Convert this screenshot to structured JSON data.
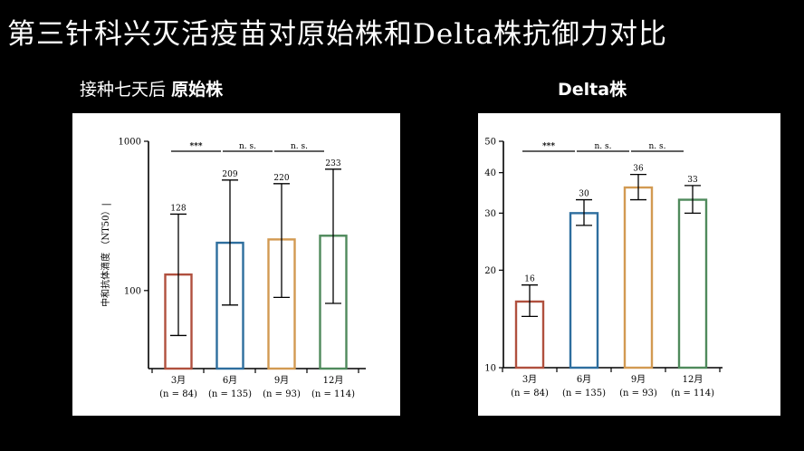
{
  "title": "第三针科兴灭活疫苗对原始株和Delta株抗御力对比",
  "colors": {
    "background": "#000000",
    "panel": "#ffffff",
    "bar_3m": "#b0503e",
    "bar_6m": "#2e6e9e",
    "bar_9m": "#d29a52",
    "bar_12m": "#4f8a5c"
  },
  "chart_data": [
    {
      "type": "bar",
      "panel_title_prefix": "接种七天后",
      "panel_title": "原始株",
      "ylabel": "中和抗体滴度 （NT50）|",
      "yscale": "log",
      "ylim": [
        30,
        1000
      ],
      "yticks": [
        100,
        1000
      ],
      "categories": [
        "3月",
        "6月",
        "9月",
        "12月"
      ],
      "sample_sizes": [
        "(n = 84)",
        "(n = 135)",
        "(n = 93)",
        "(n = 114)"
      ],
      "values": [
        128,
        209,
        220,
        233
      ],
      "value_labels": [
        "128",
        "209",
        "220",
        "233"
      ],
      "error_low": [
        50,
        80,
        90,
        82
      ],
      "error_high": [
        325,
        550,
        520,
        650
      ],
      "significance": [
        {
          "from": 0,
          "to": 1,
          "label": "***"
        },
        {
          "from": 1,
          "to": 2,
          "label": "n. s."
        },
        {
          "from": 2,
          "to": 3,
          "label": "n. s."
        }
      ]
    },
    {
      "type": "bar",
      "panel_title": "Delta株",
      "yscale": "log",
      "ylim": [
        10,
        50
      ],
      "yticks": [
        10,
        20,
        30,
        40,
        50
      ],
      "categories": [
        "3月",
        "6月",
        "9月",
        "12月"
      ],
      "sample_sizes": [
        "(n = 84)",
        "(n = 135)",
        "(n = 93)",
        "(n = 114)"
      ],
      "values": [
        16,
        30,
        36,
        33
      ],
      "value_labels": [
        "16",
        "30",
        "36",
        "33"
      ],
      "error_low": [
        14.4,
        27.5,
        33,
        30
      ],
      "error_high": [
        18,
        33,
        39.5,
        36.5
      ],
      "significance": [
        {
          "from": 0,
          "to": 1,
          "label": "***"
        },
        {
          "from": 1,
          "to": 2,
          "label": "n. s."
        },
        {
          "from": 2,
          "to": 3,
          "label": "n. s."
        }
      ]
    }
  ]
}
